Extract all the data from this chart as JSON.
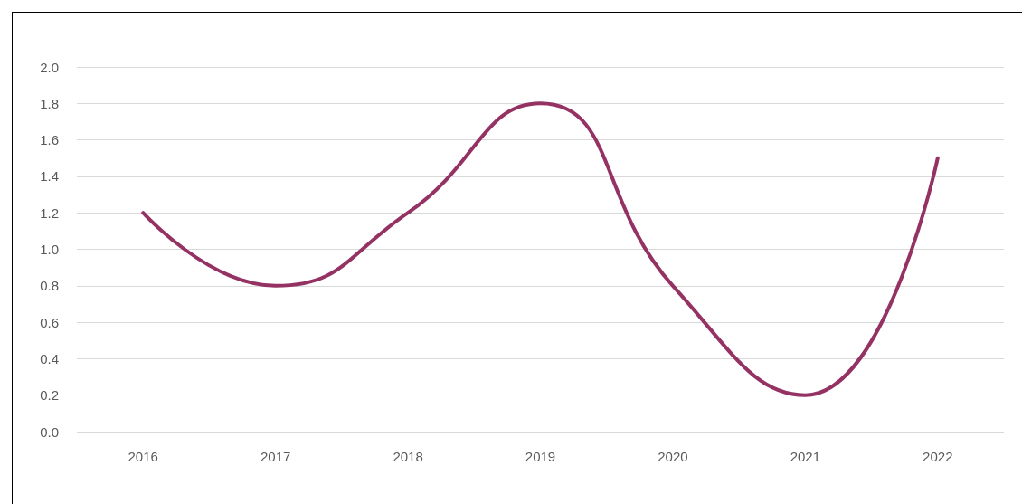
{
  "chart_data": {
    "type": "line",
    "categories": [
      "2016",
      "2017",
      "2018",
      "2019",
      "2020",
      "2021",
      "2022"
    ],
    "series": [
      {
        "color": "#953264",
        "values": [
          1.2,
          0.8,
          1.2,
          1.8,
          0.8,
          0.2,
          1.5
        ]
      }
    ],
    "ylim": [
      0,
      2
    ],
    "yticks": [
      {
        "value": 0,
        "label": "0.0"
      },
      {
        "value": 0.2,
        "label": "0.2"
      },
      {
        "value": 0.4,
        "label": "0.4"
      },
      {
        "value": 0.6,
        "label": "0.6"
      },
      {
        "value": 0.8,
        "label": "0.8"
      },
      {
        "value": 1,
        "label": "1.0"
      },
      {
        "value": 1.2,
        "label": "1.2"
      },
      {
        "value": 1.4,
        "label": "1.4"
      },
      {
        "value": 1.6,
        "label": "1.6"
      },
      {
        "value": 1.8,
        "label": "1.8"
      },
      {
        "value": 2,
        "label": "2.0"
      }
    ],
    "grid": "y",
    "marker": "none",
    "line_style": "solid"
  }
}
